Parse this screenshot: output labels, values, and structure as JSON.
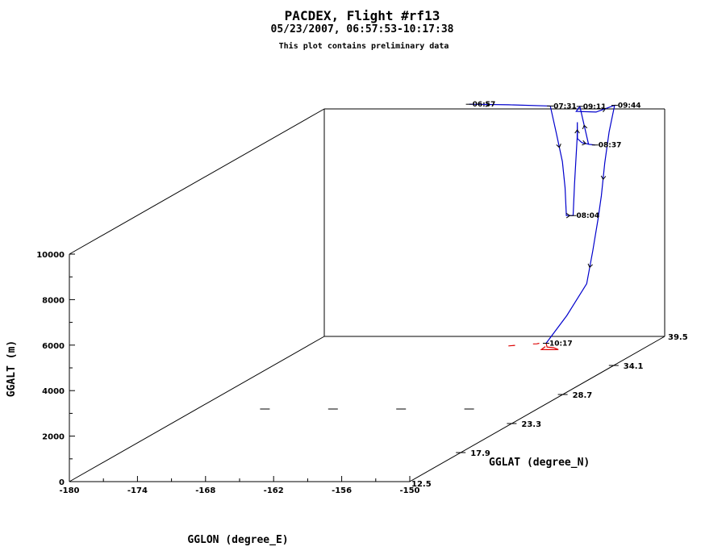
{
  "chart_data": {
    "type": "line",
    "title": "PACDEX, Flight #rf13",
    "subtitle": "05/23/2007, 06:57:53-10:17:38",
    "note": "This plot contains preliminary data",
    "xlabel": "GGLON (degree_E)",
    "ylabel": "GGLAT (degree_N)",
    "zlabel": "GGALT (m)",
    "xlim": [
      -180,
      -150
    ],
    "ylim": [
      12.5,
      39.5
    ],
    "zlim": [
      0,
      10000
    ],
    "x_ticks": [
      "-180",
      "-174",
      "-168",
      "-162",
      "-156",
      "-150"
    ],
    "y_ticks": [
      "17.9",
      "23.3",
      "28.7",
      "34.1"
    ],
    "y_limit_labels": [
      "12.5",
      "39.5"
    ],
    "z_ticks": [
      "0",
      "2000",
      "4000",
      "6000",
      "8000",
      "10000"
    ],
    "grid": false,
    "series": [
      {
        "color": "#0000cc",
        "points": [
          [
            -166.9,
            39.1,
            10300
          ],
          [
            -163.5,
            39.2,
            10250
          ],
          [
            -160.0,
            39.4,
            10150
          ],
          [
            -159.3,
            39.2,
            9000
          ],
          [
            -158.6,
            39.0,
            7800
          ],
          [
            -158.2,
            38.8,
            6700
          ],
          [
            -158.0,
            38.7,
            5500
          ],
          [
            -157.4,
            38.7,
            5500
          ],
          [
            -157.2,
            38.6,
            6900
          ],
          [
            -156.8,
            38.4,
            9000
          ],
          [
            -156.7,
            38.3,
            9700
          ],
          [
            -156.6,
            38.2,
            9000
          ],
          [
            -156.3,
            38.3,
            8800
          ],
          [
            -155.7,
            38.4,
            8700
          ],
          [
            -155.3,
            38.5,
            8650
          ],
          [
            -155.3,
            37.8,
            8850
          ],
          [
            -155.4,
            37.0,
            10700
          ],
          [
            -155.3,
            36.5,
            10600
          ],
          [
            -153.8,
            36.8,
            10500
          ],
          [
            -152.5,
            37.2,
            10700
          ],
          [
            -152.4,
            36.5,
            9700
          ],
          [
            -152.2,
            35.8,
            8500
          ],
          [
            -152.0,
            35.2,
            7200
          ],
          [
            -151.8,
            34.6,
            6300
          ],
          [
            -151.6,
            33.8,
            5100
          ],
          [
            -151.3,
            32.8,
            3900
          ],
          [
            -151.3,
            30.7,
            3000
          ],
          [
            -151.3,
            28.5,
            2300
          ]
        ]
      },
      {
        "color": "#dd0000",
        "points": [
          [
            -151.3,
            28.5,
            2300
          ],
          [
            -150.8,
            28.0,
            2250
          ],
          [
            -150.3,
            28.1,
            2200
          ],
          [
            -150.3,
            28.6,
            2000
          ],
          [
            -150.9,
            29.0,
            1900
          ],
          [
            -151.6,
            29.0,
            1900
          ],
          [
            -151.8,
            28.6,
            2000
          ],
          [
            -151.2,
            28.3,
            2200
          ]
        ]
      },
      {
        "color": "#dd0000",
        "points": [
          [
            -152.7,
            28.8,
            2200
          ],
          [
            -152.2,
            28.6,
            2250
          ],
          [
            -151.9,
            28.5,
            2300
          ]
        ]
      },
      {
        "color": "#dd0000",
        "points": [
          [
            -154.2,
            28.0,
            2300
          ],
          [
            -153.7,
            28.1,
            2300
          ]
        ]
      }
    ],
    "time_labels": [
      {
        "text": "06:57",
        "lon": -166.9,
        "lat": 39.1,
        "alt": 10300
      },
      {
        "text": "07:31",
        "lon": -160.0,
        "lat": 39.4,
        "alt": 10150
      },
      {
        "text": "08:04",
        "lon": -157.4,
        "lat": 38.7,
        "alt": 5500
      },
      {
        "text": "08:37",
        "lon": -155.3,
        "lat": 38.5,
        "alt": 8650
      },
      {
        "text": "09:11",
        "lon": -155.4,
        "lat": 37.0,
        "alt": 10700
      },
      {
        "text": "09:44",
        "lon": -152.5,
        "lat": 37.2,
        "alt": 10700
      },
      {
        "text": "10:17",
        "lon": -151.3,
        "lat": 28.5,
        "alt": 2300
      }
    ]
  }
}
